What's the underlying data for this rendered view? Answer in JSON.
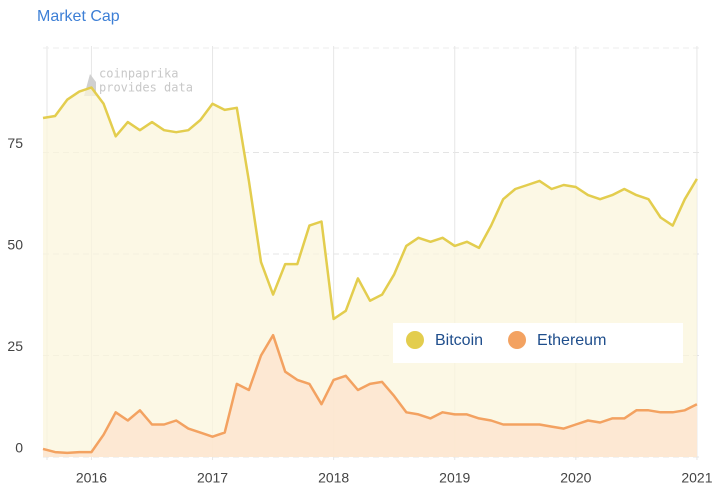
{
  "chart_data": {
    "type": "area",
    "title": "Market Cap",
    "watermark": "coinpaprika",
    "watermark_subtitle": "provides data",
    "x": [
      2015.6,
      2015.7,
      2015.8,
      2015.9,
      2016.0,
      2016.1,
      2016.2,
      2016.3,
      2016.4,
      2016.5,
      2016.6,
      2016.7,
      2016.8,
      2016.9,
      2017.0,
      2017.1,
      2017.2,
      2017.3,
      2017.4,
      2017.5,
      2017.6,
      2017.7,
      2017.8,
      2017.9,
      2018.0,
      2018.1,
      2018.2,
      2018.3,
      2018.4,
      2018.5,
      2018.6,
      2018.7,
      2018.8,
      2018.9,
      2019.0,
      2019.1,
      2019.2,
      2019.3,
      2019.4,
      2019.5,
      2019.6,
      2019.7,
      2019.8,
      2019.9,
      2020.0,
      2020.1,
      2020.2,
      2020.3,
      2020.4,
      2020.5,
      2020.6,
      2020.7,
      2020.8,
      2020.9,
      2021.0
    ],
    "series": [
      {
        "name": "Bitcoin",
        "color": "#e3cd4e",
        "fill": "#fbf6dc",
        "values": [
          83.5,
          84,
          88,
          90,
          91,
          87,
          79,
          82.5,
          80.5,
          82.5,
          80.5,
          80,
          80.5,
          83,
          87,
          85.5,
          86,
          68,
          48,
          40,
          47.5,
          47.5,
          57,
          58,
          34,
          36,
          44,
          38.5,
          40,
          45,
          52,
          54,
          53,
          54,
          52,
          53,
          51.5,
          57,
          63.5,
          66,
          67,
          68,
          66,
          67,
          66.5,
          64.5,
          63.5,
          64.5,
          66,
          64.5,
          63.5,
          59,
          57,
          63.5,
          68.5
        ]
      },
      {
        "name": "Ethereum",
        "color": "#f3a261",
        "fill": "#fde3cc",
        "values": [
          2,
          1.2,
          1,
          1.2,
          1.2,
          5.5,
          11,
          9,
          11.5,
          8,
          8,
          9,
          7,
          6,
          5,
          6,
          18,
          16.5,
          25,
          30,
          21,
          19,
          18,
          13,
          19,
          20,
          16.5,
          18,
          18.5,
          15,
          11,
          10.5,
          9.5,
          11,
          10.5,
          10.5,
          9.5,
          9,
          8,
          8,
          8,
          8,
          7.5,
          7,
          8,
          9,
          8.5,
          9.5,
          9.5,
          11.5,
          11.5,
          11,
          11,
          11.5,
          13
        ]
      }
    ],
    "xlim": [
      2015.6,
      2021.05
    ],
    "xticks": [
      2016,
      2017,
      2018,
      2019,
      2020,
      2021
    ],
    "ylim": [
      0,
      100
    ],
    "yticks": [
      0,
      25,
      50,
      75
    ],
    "grid": true,
    "legend_position": "right"
  }
}
